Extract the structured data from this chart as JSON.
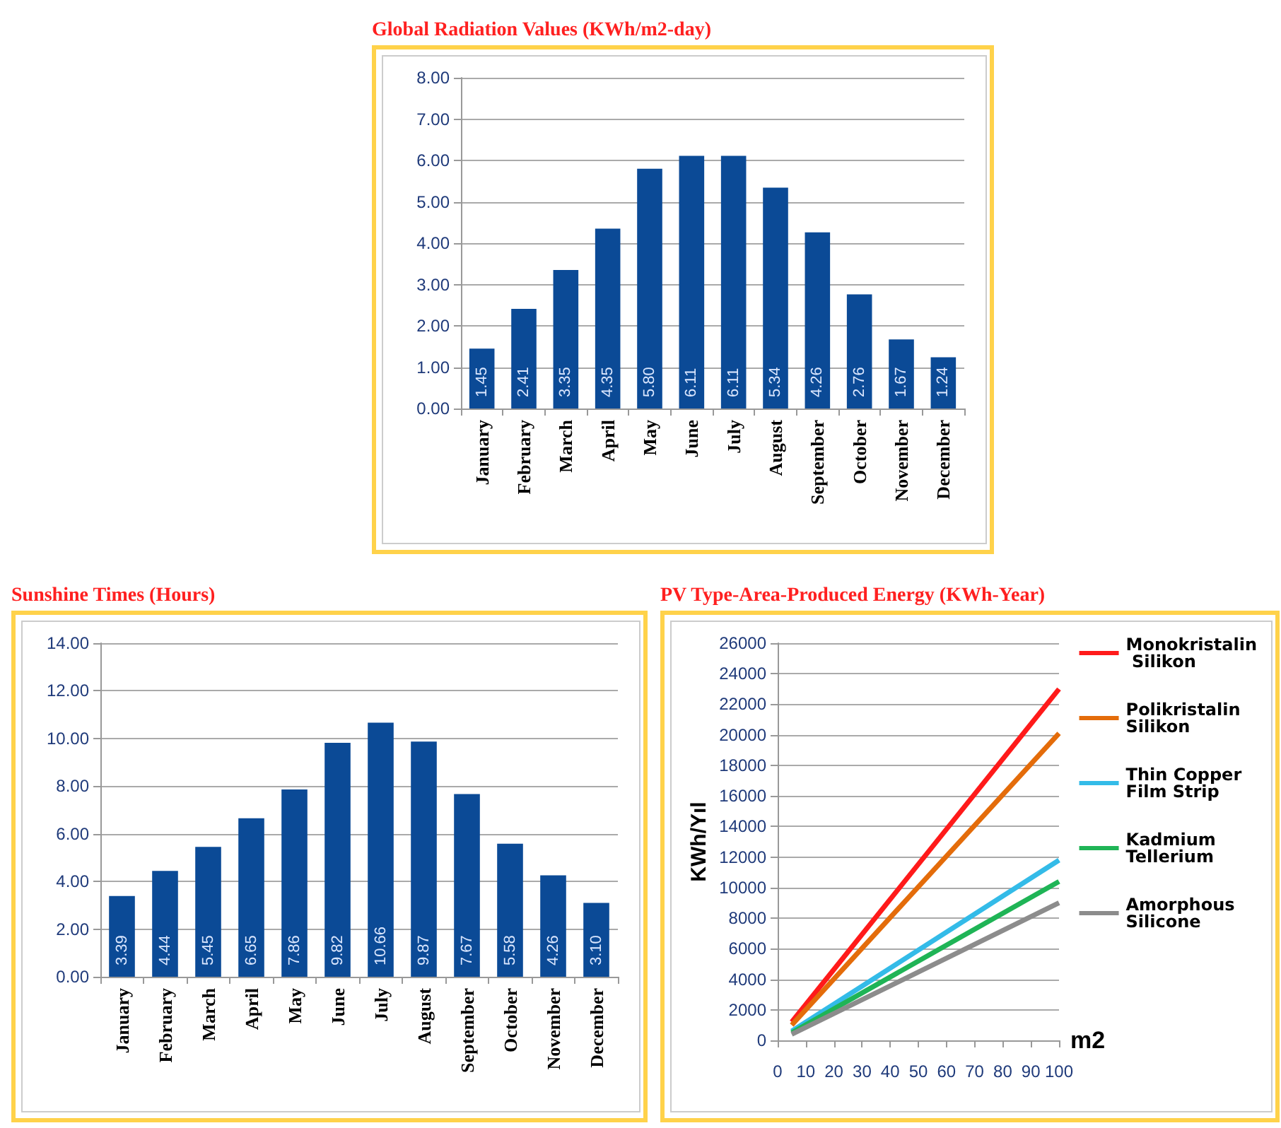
{
  "chart_data": [
    {
      "type": "bar",
      "title": "Global Radiation Values (KWh/m2-day)",
      "categories": [
        "January",
        "February",
        "March",
        "April",
        "May",
        "June",
        "July",
        "August",
        "September",
        "October",
        "November",
        "December"
      ],
      "values": [
        1.45,
        2.41,
        3.35,
        4.35,
        5.8,
        6.11,
        6.11,
        5.34,
        4.26,
        2.76,
        1.67,
        1.24
      ],
      "value_labels": [
        "1.45",
        "2.41",
        "3.35",
        "4.35",
        "5.80",
        "6.11",
        "6.11",
        "5.34",
        "4.26",
        "2.76",
        "1.67",
        "1.24"
      ],
      "color": "#0b4a96",
      "ylim": [
        0,
        8
      ],
      "yticks": [
        {
          "value": 0,
          "label": "0.00"
        },
        {
          "value": 1,
          "label": "1.00"
        },
        {
          "value": 2,
          "label": "2.00"
        },
        {
          "value": 3,
          "label": "3.00"
        },
        {
          "value": 4,
          "label": "4.00"
        },
        {
          "value": 5,
          "label": "5.00"
        },
        {
          "value": 6,
          "label": "6.00"
        },
        {
          "value": 7,
          "label": "7.00"
        },
        {
          "value": 8,
          "label": "8.00"
        }
      ],
      "grid": "y"
    },
    {
      "type": "bar",
      "title": "Sunshine Times (Hours)",
      "categories": [
        "January",
        "February",
        "March",
        "April",
        "May",
        "June",
        "July",
        "August",
        "September",
        "October",
        "November",
        "December"
      ],
      "values": [
        3.39,
        4.44,
        5.45,
        6.65,
        7.86,
        9.82,
        10.66,
        9.87,
        7.67,
        5.58,
        4.26,
        3.1
      ],
      "value_labels": [
        "3.39",
        "4.44",
        "5.45",
        "6.65",
        "7.86",
        "9.82",
        "10.66",
        "9.87",
        "7.67",
        "5.58",
        "4.26",
        "3.10"
      ],
      "color": "#0b4a96",
      "ylim": [
        0,
        14
      ],
      "yticks": [
        {
          "value": 0,
          "label": "0.00"
        },
        {
          "value": 2,
          "label": "2.00"
        },
        {
          "value": 4,
          "label": "4.00"
        },
        {
          "value": 6,
          "label": "6.00"
        },
        {
          "value": 8,
          "label": "8.00"
        },
        {
          "value": 10,
          "label": "10.00"
        },
        {
          "value": 12,
          "label": "12.00"
        },
        {
          "value": 14,
          "label": "14.00"
        }
      ],
      "grid": "y"
    },
    {
      "type": "line",
      "title": "PV Type-Area-Produced Energy (KWh-Year)",
      "xlabel": "m2",
      "ylabel": "KWh/Yıl",
      "x": [
        5,
        100
      ],
      "series": [
        {
          "name": "Monokristalin Silikon",
          "color": "#ff1a1a",
          "values": [
            1200,
            23000
          ]
        },
        {
          "name": "Polikristalin Silikon",
          "color": "#e46c0a",
          "values": [
            1000,
            20100
          ]
        },
        {
          "name": "Thin Copper Film Strip",
          "color": "#33bbe8",
          "values": [
            600,
            11800
          ]
        },
        {
          "name": "Kadmium Tellerium",
          "color": "#1fb456",
          "values": [
            500,
            10400
          ]
        },
        {
          "name": "Amorphous Silicone",
          "color": "#8c8c8c",
          "values": [
            400,
            9000
          ]
        }
      ],
      "xlim": [
        0,
        100
      ],
      "xticks": [
        0,
        10,
        20,
        30,
        40,
        50,
        60,
        70,
        80,
        90,
        100
      ],
      "ylim": [
        0,
        26000
      ],
      "yticks": [
        0,
        2000,
        4000,
        6000,
        8000,
        10000,
        12000,
        14000,
        16000,
        18000,
        20000,
        22000,
        24000,
        26000
      ],
      "grid": "y",
      "legend": "right",
      "marker": "none",
      "line_style": "solid"
    }
  ]
}
